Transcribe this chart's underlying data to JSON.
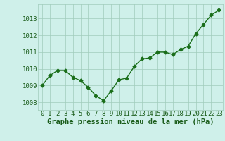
{
  "x": [
    0,
    1,
    2,
    3,
    4,
    5,
    6,
    7,
    8,
    9,
    10,
    11,
    12,
    13,
    14,
    15,
    16,
    17,
    18,
    19,
    20,
    21,
    22,
    23
  ],
  "y": [
    1009.0,
    1009.6,
    1009.9,
    1009.9,
    1009.5,
    1009.3,
    1008.9,
    1008.4,
    1008.1,
    1008.7,
    1009.35,
    1009.45,
    1010.15,
    1010.6,
    1010.65,
    1011.0,
    1011.0,
    1010.85,
    1011.15,
    1011.35,
    1012.1,
    1012.65,
    1013.2,
    1013.5
  ],
  "line_color": "#1a6e1a",
  "marker": "D",
  "marker_size": 2.5,
  "bg_color": "#cff0ea",
  "grid_color": "#a0ccbb",
  "xlabel": "Graphe pression niveau de la mer (hPa)",
  "xlabel_fontsize": 7.5,
  "xlabel_color": "#1a5c1a",
  "ytick_labels": [
    "1008",
    "1009",
    "1010",
    "1011",
    "1012",
    "1013"
  ],
  "ytick_values": [
    1008,
    1009,
    1010,
    1011,
    1012,
    1013
  ],
  "ylim": [
    1007.55,
    1013.85
  ],
  "xlim": [
    -0.5,
    23.5
  ],
  "xtick_labels": [
    "0",
    "1",
    "2",
    "3",
    "4",
    "5",
    "6",
    "7",
    "8",
    "9",
    "10",
    "11",
    "12",
    "13",
    "14",
    "15",
    "16",
    "17",
    "18",
    "19",
    "20",
    "21",
    "22",
    "23"
  ],
  "tick_fontsize": 6.5,
  "tick_color": "#1a5c1a",
  "linewidth": 1.0
}
